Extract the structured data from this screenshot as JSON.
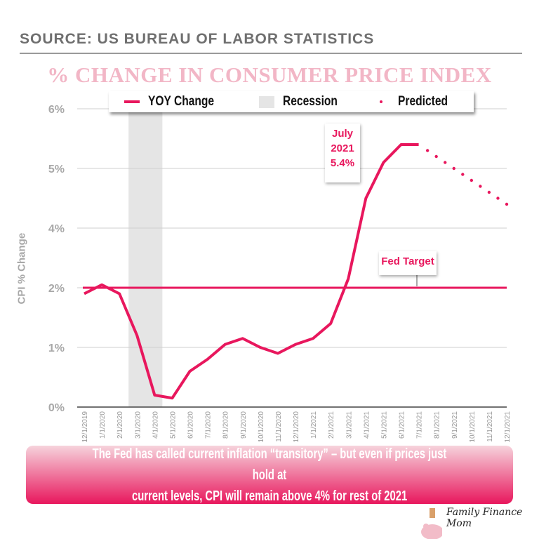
{
  "source": "SOURCE: US BUREAU OF LABOR STATISTICS",
  "banner": {
    "line1": "The Fed has called current inflation “transitory” – but even if prices just hold at",
    "line2": "current levels, CPI will remain above 4% for rest of 2021"
  },
  "logo": "Family Finance Mom",
  "chart_data": {
    "type": "line",
    "title": "% CHANGE IN CONSUMER PRICE INDEX",
    "ylabel": "CPI % Change",
    "xlabel": "",
    "yticks": [
      0,
      1,
      2,
      4,
      5,
      6
    ],
    "ytick_labels": [
      "0%",
      "1%",
      "2%",
      "4%",
      "5%",
      "6%"
    ],
    "ylim": [
      0,
      6
    ],
    "grid": true,
    "legend_position": "top",
    "legend": [
      "YOY Change",
      "Recession",
      "Predicted"
    ],
    "categories": [
      "12/1/2019",
      "1/1/2020",
      "2/1/2020",
      "3/1/2020",
      "4/1/2020",
      "5/1/2020",
      "6/1/2020",
      "7/1/2020",
      "8/1/2020",
      "9/1/2020",
      "10/1/2020",
      "11/1/2020",
      "12/1/2020",
      "1/1/2021",
      "2/1/2021",
      "3/1/2021",
      "4/1/2021",
      "5/1/2021",
      "6/1/2021",
      "7/1/2021",
      "8/1/2021",
      "9/1/2021",
      "10/1/2021",
      "11/1/2021",
      "12/1/2021"
    ],
    "series": [
      {
        "name": "YOY Change",
        "style": "solid",
        "color": "#e8175d",
        "values": [
          1.9,
          2.1,
          1.9,
          1.2,
          0.2,
          0.15,
          0.6,
          0.8,
          1.05,
          1.15,
          1.0,
          0.9,
          1.05,
          1.15,
          1.4,
          2.3,
          4.5,
          5.1,
          5.4,
          5.4,
          null,
          null,
          null,
          null,
          null
        ]
      },
      {
        "name": "Predicted",
        "style": "dotted",
        "color": "#e8175d",
        "values": [
          null,
          null,
          null,
          null,
          null,
          null,
          null,
          null,
          null,
          null,
          null,
          null,
          null,
          null,
          null,
          null,
          null,
          null,
          null,
          5.4,
          5.2,
          5.0,
          4.8,
          4.6,
          4.4
        ]
      }
    ],
    "recession": {
      "name": "Recession",
      "start": "2/1/2020",
      "end": "4/1/2020",
      "color": "#e5e5e5"
    },
    "reference_line": {
      "value": 2,
      "label": "Fed Target",
      "color": "#e8175d"
    },
    "annotations": [
      {
        "x": "7/1/2021",
        "lines": [
          "July",
          "2021",
          "5.4%"
        ]
      }
    ]
  }
}
